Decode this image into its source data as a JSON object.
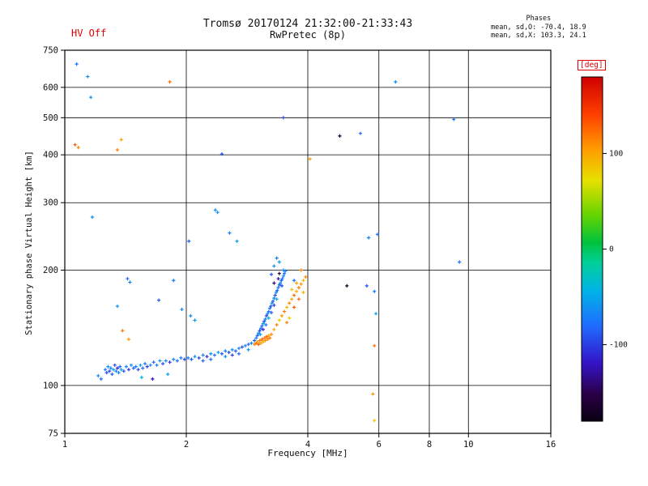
{
  "header": {
    "hv_status": "HV Off",
    "stats": {
      "title": "Phases",
      "line_o": "mean, sd,O: -70.4, 18.9",
      "line_x": "mean, sd,X: 103.3, 24.1"
    }
  },
  "chart_data": {
    "type": "scatter",
    "title": "Tromsø 20170124 21:32:00-21:33:43",
    "subtitle": "RwPretec (8p)",
    "xlabel": "Frequency [MHz]",
    "ylabel": "Stationary phase Virtual Height [km]",
    "x_scale": "log",
    "y_scale": "log",
    "xlim": [
      1,
      16
    ],
    "ylim": [
      75,
      750
    ],
    "x_ticks": [
      1,
      2,
      4,
      6,
      8,
      10,
      16
    ],
    "y_ticks": [
      750,
      600,
      500,
      400,
      300,
      200,
      100,
      75
    ],
    "grid": true,
    "legend": "none",
    "point_format": [
      "frequency_MHz",
      "virtual_height_km",
      "phase_deg"
    ],
    "colorbar": {
      "label": "[deg]",
      "domain": [
        -180,
        180
      ],
      "ticks": [
        100,
        0,
        -100
      ],
      "stops": [
        {
          "t": 0.0,
          "c": "#0a0012"
        },
        {
          "t": 0.08,
          "c": "#2a0048"
        },
        {
          "t": 0.17,
          "c": "#3414c8"
        },
        {
          "t": 0.28,
          "c": "#1e6eff"
        },
        {
          "t": 0.38,
          "c": "#00b4e6"
        },
        {
          "t": 0.46,
          "c": "#00cf9a"
        },
        {
          "t": 0.52,
          "c": "#00c23c"
        },
        {
          "t": 0.6,
          "c": "#66d400"
        },
        {
          "t": 0.7,
          "c": "#e8e000"
        },
        {
          "t": 0.79,
          "c": "#ff9c00"
        },
        {
          "t": 0.89,
          "c": "#ff4000"
        },
        {
          "t": 1.0,
          "c": "#cf0000"
        }
      ]
    },
    "points": [
      [
        1.21,
        106,
        -65
      ],
      [
        1.23,
        104,
        -80
      ],
      [
        1.26,
        110,
        -75
      ],
      [
        1.27,
        108,
        -92
      ],
      [
        1.28,
        112,
        -60
      ],
      [
        1.29,
        109,
        -100
      ],
      [
        1.3,
        111,
        -70
      ],
      [
        1.31,
        107,
        -85
      ],
      [
        1.32,
        110,
        -55
      ],
      [
        1.33,
        113,
        -95
      ],
      [
        1.34,
        109,
        -70
      ],
      [
        1.35,
        111,
        -112
      ],
      [
        1.36,
        108,
        -65
      ],
      [
        1.37,
        112,
        -80
      ],
      [
        1.38,
        110,
        -50
      ],
      [
        1.4,
        109,
        -90
      ],
      [
        1.42,
        112,
        -70
      ],
      [
        1.44,
        110,
        -105
      ],
      [
        1.46,
        113,
        -60
      ],
      [
        1.48,
        111,
        -85
      ],
      [
        1.5,
        112,
        -70
      ],
      [
        1.52,
        110,
        -96
      ],
      [
        1.54,
        113,
        -55
      ],
      [
        1.56,
        111,
        -80
      ],
      [
        1.58,
        114,
        -70
      ],
      [
        1.6,
        112,
        -100
      ],
      [
        1.63,
        113,
        -65
      ],
      [
        1.66,
        115,
        -85
      ],
      [
        1.69,
        113,
        -75
      ],
      [
        1.72,
        116,
        -60
      ],
      [
        1.75,
        114,
        -90
      ],
      [
        1.78,
        116,
        -70
      ],
      [
        1.82,
        115,
        -105
      ],
      [
        1.86,
        117,
        -65
      ],
      [
        1.9,
        116,
        -80
      ],
      [
        1.94,
        118,
        -70
      ],
      [
        1.98,
        117,
        -95
      ],
      [
        1.55,
        105,
        -45
      ],
      [
        1.65,
        104,
        -120
      ],
      [
        1.8,
        107,
        -52
      ],
      [
        2.02,
        118,
        -70
      ],
      [
        2.06,
        117,
        -85
      ],
      [
        2.1,
        119,
        -60
      ],
      [
        2.15,
        118,
        -95
      ],
      [
        2.2,
        120,
        -70
      ],
      [
        2.25,
        119,
        -108
      ],
      [
        2.3,
        121,
        -65
      ],
      [
        2.35,
        120,
        -80
      ],
      [
        2.4,
        122,
        -55
      ],
      [
        2.45,
        121,
        -90
      ],
      [
        2.5,
        123,
        -70
      ],
      [
        2.55,
        122,
        -100
      ],
      [
        2.6,
        124,
        -60
      ],
      [
        2.65,
        123,
        -85
      ],
      [
        2.7,
        125,
        -70
      ],
      [
        2.75,
        126,
        -95
      ],
      [
        2.8,
        127,
        -65
      ],
      [
        2.85,
        128,
        -80
      ],
      [
        2.9,
        129,
        -70
      ],
      [
        2.95,
        131,
        -90
      ],
      [
        2.3,
        117,
        -75
      ],
      [
        2.5,
        119,
        -64
      ],
      [
        2.7,
        121,
        -80
      ],
      [
        2.85,
        124,
        -58
      ],
      [
        2.6,
        120,
        -100
      ],
      [
        2.2,
        116,
        -86
      ],
      [
        2.98,
        133,
        -70
      ],
      [
        3.0,
        135,
        -85
      ],
      [
        3.02,
        137,
        -60
      ],
      [
        3.04,
        139,
        -95
      ],
      [
        3.06,
        141,
        -70
      ],
      [
        3.08,
        143,
        -80
      ],
      [
        3.1,
        145,
        -55
      ],
      [
        3.12,
        147,
        -90
      ],
      [
        3.14,
        149,
        -70
      ],
      [
        3.16,
        152,
        -100
      ],
      [
        3.18,
        154,
        -64
      ],
      [
        3.2,
        156,
        -80
      ],
      [
        3.22,
        159,
        -70
      ],
      [
        3.24,
        161,
        -90
      ],
      [
        3.26,
        164,
        -60
      ],
      [
        3.28,
        166,
        -85
      ],
      [
        3.3,
        169,
        -70
      ],
      [
        3.32,
        172,
        -95
      ],
      [
        3.34,
        175,
        -65
      ],
      [
        3.36,
        177,
        -80
      ],
      [
        3.38,
        180,
        -70
      ],
      [
        3.4,
        183,
        -90
      ],
      [
        3.42,
        185,
        -60
      ],
      [
        3.44,
        188,
        -85
      ],
      [
        3.46,
        190,
        -75
      ],
      [
        3.48,
        193,
        -65
      ],
      [
        3.5,
        196,
        -80
      ],
      [
        3.52,
        199,
        -70
      ],
      [
        3.1,
        140,
        -110
      ],
      [
        3.2,
        150,
        -50
      ],
      [
        3.3,
        162,
        -105
      ],
      [
        3.35,
        168,
        -45
      ],
      [
        3.15,
        144,
        -76
      ],
      [
        3.25,
        155,
        -86
      ],
      [
        3.45,
        182,
        -95
      ],
      [
        3.05,
        136,
        -55
      ],
      [
        3.3,
        205,
        -60
      ],
      [
        3.35,
        215,
        -70
      ],
      [
        3.4,
        210,
        -55
      ],
      [
        3.25,
        195,
        -90
      ],
      [
        3.48,
        200,
        -65
      ],
      [
        3.38,
        190,
        -130
      ],
      [
        3.3,
        185,
        -140
      ],
      [
        3.4,
        196,
        -165
      ],
      [
        3.7,
        188,
        -75
      ],
      [
        2.95,
        128,
        112
      ],
      [
        2.98,
        129,
        122
      ],
      [
        3.0,
        130,
        100
      ],
      [
        3.02,
        128,
        132
      ],
      [
        3.04,
        131,
        115
      ],
      [
        3.06,
        129,
        105
      ],
      [
        3.08,
        132,
        125
      ],
      [
        3.1,
        130,
        95
      ],
      [
        3.12,
        133,
        118
      ],
      [
        3.14,
        131,
        108
      ],
      [
        3.16,
        134,
        128
      ],
      [
        3.18,
        132,
        112
      ],
      [
        3.2,
        135,
        100
      ],
      [
        3.22,
        133,
        122
      ],
      [
        3.25,
        136,
        110
      ],
      [
        3.3,
        140,
        95
      ],
      [
        3.35,
        144,
        115
      ],
      [
        3.4,
        148,
        85
      ],
      [
        3.45,
        152,
        105
      ],
      [
        3.5,
        156,
        120
      ],
      [
        3.55,
        160,
        90
      ],
      [
        3.6,
        164,
        110
      ],
      [
        3.65,
        168,
        100
      ],
      [
        3.7,
        172,
        125
      ],
      [
        3.75,
        176,
        95
      ],
      [
        3.8,
        180,
        115
      ],
      [
        3.85,
        184,
        105
      ],
      [
        3.9,
        188,
        90
      ],
      [
        3.95,
        192,
        110
      ],
      [
        3.6,
        150,
        80
      ],
      [
        3.7,
        160,
        130
      ],
      [
        3.75,
        185,
        100
      ],
      [
        3.85,
        200,
        115
      ],
      [
        3.65,
        178,
        88
      ],
      [
        3.55,
        146,
        118
      ],
      [
        3.9,
        175,
        95
      ],
      [
        3.8,
        168,
        125
      ],
      [
        1.44,
        132,
        105
      ],
      [
        1.07,
        690,
        -75
      ],
      [
        1.14,
        640,
        -62
      ],
      [
        1.16,
        565,
        -58
      ],
      [
        1.06,
        425,
        130
      ],
      [
        1.08,
        418,
        112
      ],
      [
        1.35,
        412,
        118
      ],
      [
        1.38,
        438,
        100
      ],
      [
        1.82,
        620,
        122
      ],
      [
        1.17,
        275,
        -60
      ],
      [
        1.45,
        186,
        -70
      ],
      [
        1.43,
        190,
        -80
      ],
      [
        1.35,
        161,
        -60
      ],
      [
        1.39,
        139,
        116
      ],
      [
        1.71,
        167,
        -90
      ],
      [
        1.86,
        188,
        -75
      ],
      [
        2.03,
        238,
        -85
      ],
      [
        1.95,
        158,
        -70
      ],
      [
        2.05,
        152,
        -60
      ],
      [
        2.1,
        148,
        -55
      ],
      [
        2.36,
        287,
        -65
      ],
      [
        2.39,
        283,
        -60
      ],
      [
        2.45,
        402,
        -92
      ],
      [
        2.56,
        250,
        -70
      ],
      [
        2.67,
        238,
        -55
      ],
      [
        3.48,
        500,
        -95
      ],
      [
        4.05,
        390,
        106
      ],
      [
        4.8,
        448,
        -160
      ],
      [
        5.4,
        455,
        -82
      ],
      [
        5.66,
        243,
        -70
      ],
      [
        5.95,
        248,
        -76
      ],
      [
        5.6,
        182,
        -90
      ],
      [
        5.85,
        176,
        -70
      ],
      [
        5.0,
        182,
        -175
      ],
      [
        5.9,
        154,
        -55
      ],
      [
        5.85,
        127,
        122
      ],
      [
        5.8,
        95,
        112
      ],
      [
        5.85,
        81,
        86
      ],
      [
        6.6,
        620,
        -62
      ],
      [
        9.2,
        495,
        -76
      ],
      [
        9.5,
        210,
        -80
      ]
    ]
  },
  "colors": {
    "accent_red": "#e00000",
    "axis": "#000000",
    "background": "#ffffff",
    "text": "#111111"
  }
}
